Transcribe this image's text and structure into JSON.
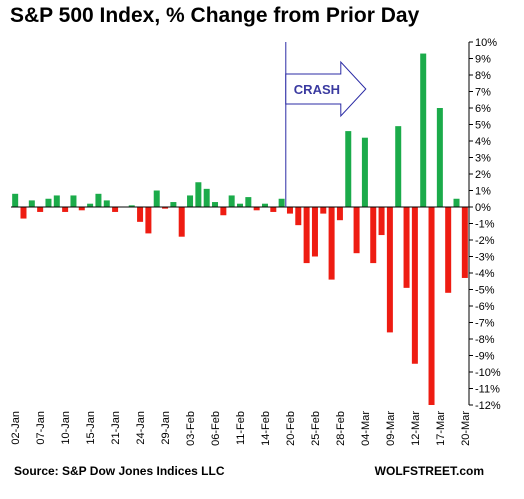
{
  "chart_data": {
    "type": "bar",
    "title": "S&P 500 Index, % Change from Prior Day",
    "ylim": [
      -12,
      10
    ],
    "y_ticks": [
      10,
      9,
      8,
      7,
      6,
      5,
      4,
      3,
      2,
      1,
      0,
      -1,
      -2,
      -3,
      -4,
      -5,
      -6,
      -7,
      -8,
      -9,
      -10,
      -11,
      -12
    ],
    "y_tick_labels": [
      "10%",
      "9%",
      "8%",
      "7%",
      "6%",
      "5%",
      "4%",
      "3%",
      "2%",
      "1%",
      "0%",
      "-1%",
      "-2%",
      "-3%",
      "-4%",
      "-5%",
      "-6%",
      "-7%",
      "-8%",
      "-9%",
      "-10%",
      "-11%",
      "-12%"
    ],
    "x_tick_labels": [
      "02-Jan",
      "07-Jan",
      "10-Jan",
      "15-Jan",
      "21-Jan",
      "24-Jan",
      "29-Jan",
      "03-Feb",
      "06-Feb",
      "11-Feb",
      "14-Feb",
      "20-Feb",
      "25-Feb",
      "28-Feb",
      "04-Mar",
      "09-Mar",
      "12-Mar",
      "17-Mar",
      "20-Mar"
    ],
    "categories": [
      "02-Jan",
      "03-Jan",
      "06-Jan",
      "07-Jan",
      "08-Jan",
      "09-Jan",
      "10-Jan",
      "13-Jan",
      "14-Jan",
      "15-Jan",
      "16-Jan",
      "17-Jan",
      "21-Jan",
      "22-Jan",
      "23-Jan",
      "24-Jan",
      "27-Jan",
      "28-Jan",
      "29-Jan",
      "30-Jan",
      "31-Jan",
      "03-Feb",
      "04-Feb",
      "05-Feb",
      "06-Feb",
      "07-Feb",
      "10-Feb",
      "11-Feb",
      "12-Feb",
      "13-Feb",
      "14-Feb",
      "18-Feb",
      "19-Feb",
      "20-Feb",
      "21-Feb",
      "24-Feb",
      "25-Feb",
      "26-Feb",
      "27-Feb",
      "28-Feb",
      "02-Mar",
      "03-Mar",
      "04-Mar",
      "05-Mar",
      "06-Mar",
      "09-Mar",
      "10-Mar",
      "11-Mar",
      "12-Mar",
      "13-Mar",
      "16-Mar",
      "17-Mar",
      "18-Mar",
      "19-Mar",
      "20-Mar"
    ],
    "values": [
      0.8,
      -0.7,
      0.4,
      -0.3,
      0.5,
      0.7,
      -0.3,
      0.7,
      -0.2,
      0.2,
      0.8,
      0.4,
      -0.3,
      0.0,
      0.1,
      -0.9,
      -1.6,
      1.0,
      -0.1,
      0.3,
      -1.8,
      0.7,
      1.5,
      1.1,
      0.3,
      -0.5,
      0.7,
      0.2,
      0.6,
      -0.2,
      0.2,
      -0.3,
      0.5,
      -0.4,
      -1.1,
      -3.4,
      -3.0,
      -0.4,
      -4.4,
      -0.8,
      4.6,
      -2.8,
      4.2,
      -3.4,
      -1.7,
      -7.6,
      4.9,
      -4.9,
      -9.5,
      9.3,
      -12.0,
      6.0,
      -5.2,
      0.5,
      -4.3
    ],
    "annotations": [
      {
        "text": "CRASH",
        "at": "20-Feb"
      }
    ],
    "colors": {
      "up": "#1bab4a",
      "down": "#ee1c12",
      "marker": "#2b2ba5"
    },
    "grid": false
  },
  "title": "S&P 500 Index, % Change from Prior Day",
  "source": "Source: S&P Dow Jones Indices LLC",
  "brand": "WOLFSTREET.com"
}
